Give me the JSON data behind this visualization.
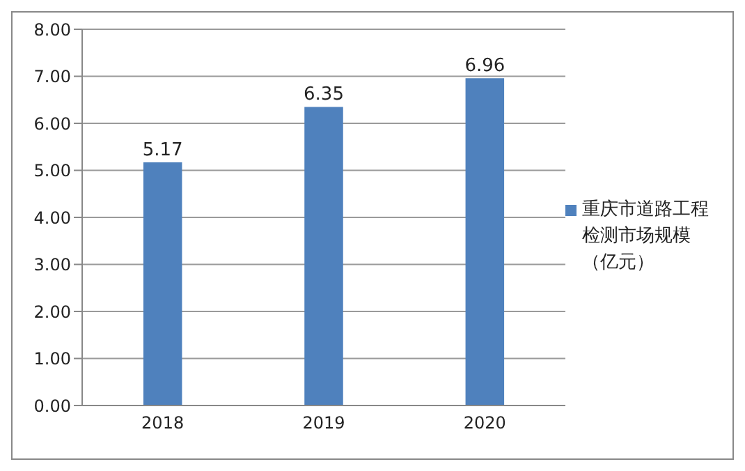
{
  "chart_data": {
    "type": "bar",
    "categories": [
      "2018",
      "2019",
      "2020"
    ],
    "series": [
      {
        "name": "重庆市道路工程检测市场规模（亿元）",
        "color": "#4f81bd",
        "values": [
          5.17,
          6.35,
          6.96
        ]
      }
    ],
    "ylim": [
      0,
      8
    ],
    "yticks": [
      {
        "value": 0,
        "label": "0.00"
      },
      {
        "value": 1,
        "label": "1.00"
      },
      {
        "value": 2,
        "label": "2.00"
      },
      {
        "value": 3,
        "label": "3.00"
      },
      {
        "value": 4,
        "label": "4.00"
      },
      {
        "value": 5,
        "label": "5.00"
      },
      {
        "value": 6,
        "label": "6.00"
      },
      {
        "value": 7,
        "label": "7.00"
      },
      {
        "value": 8,
        "label": "8.00"
      }
    ],
    "grid": "y",
    "legend": "right",
    "data_labels": true
  }
}
